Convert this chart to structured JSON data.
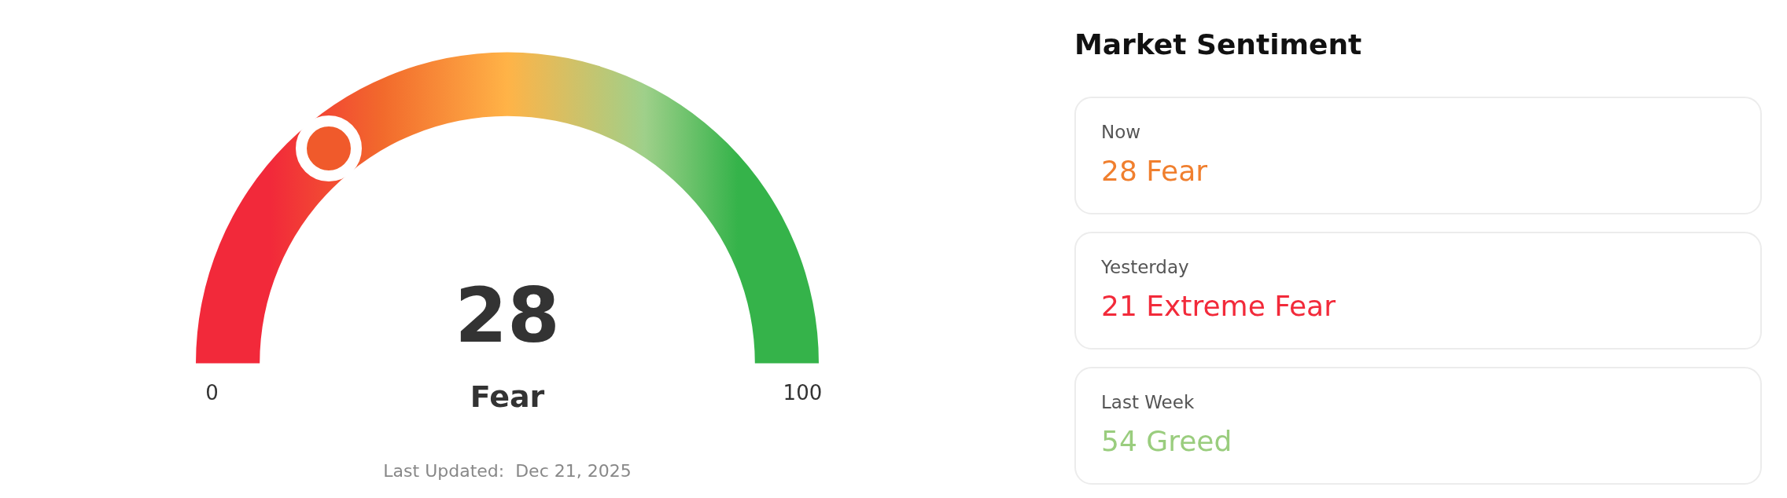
{
  "chart_data": [
    {
      "type": "other",
      "categories": [
        "Fear"
      ],
      "values": [
        28
      ],
      "data_labels": true,
      "colors": [
        "#f05a2b"
      ],
      "annotations": [
        "0",
        "100",
        "Last Updated:  Dec 21, 2025"
      ]
    },
    {
      "type": "other",
      "title": "Market Sentiment",
      "categories": [
        "Now",
        "Yesterday",
        "Last Week"
      ],
      "value_labels": [
        "28 Fear",
        "21 Extreme Fear",
        "54 Greed"
      ],
      "colors": [
        "#f07f2e",
        "#f22a3a",
        "#9acd7e"
      ]
    }
  ]
}
